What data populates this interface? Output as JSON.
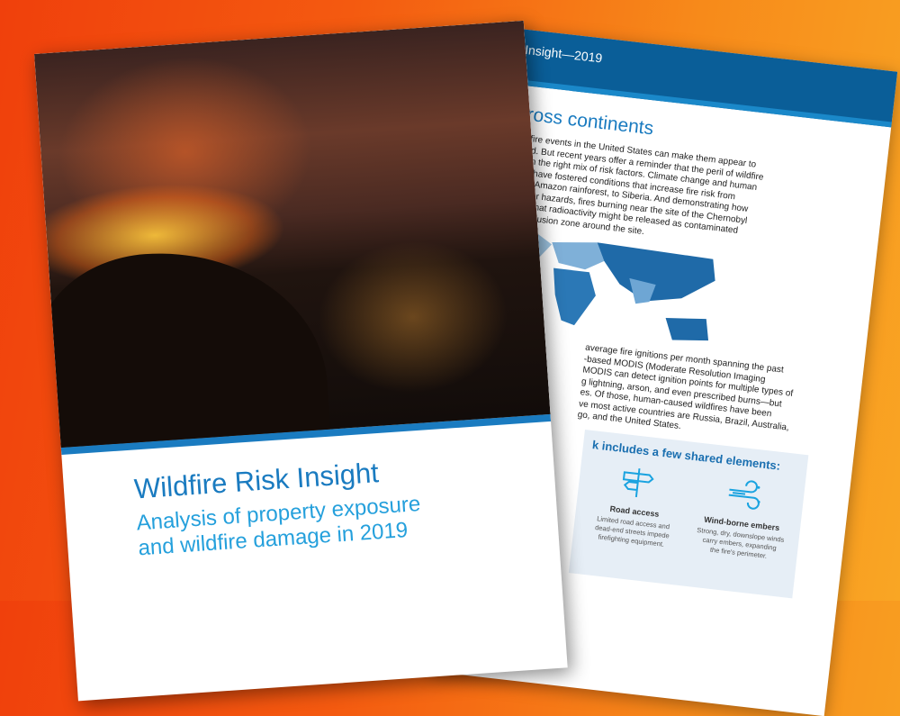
{
  "front_page": {
    "title": "Wildfire Risk Insight",
    "subtitle_line1": "Analysis of property exposure",
    "subtitle_line2": "and wildfire damage in 2019"
  },
  "back_page": {
    "header": "Insight—2019",
    "heading": "cross continents",
    "paragraph1": [
      "wildfire events in the United States can make them appear to",
      "azard. But recent years offer a reminder that the peril of wildfire",
      "n with the right mix of risk factors. Climate change and human",
      "ands have fostered conditions that increase fire risk from",
      "to the Amazon rainforest, to Siberia. And demonstrating how",
      "th other hazards, fires burning near the site of the Chernobyl",
      "cerns that radioactivity might be released as contaminated",
      "the exclusion zone around the site."
    ],
    "paragraph2": [
      "average fire ignitions per month spanning the past",
      "-based MODIS (Moderate Resolution Imaging",
      "MODIS can detect ignition points for multiple types of",
      "g lightning, arson, and even prescribed burns—but",
      "es. Of those, human-caused wildfires have been",
      "ve most active countries are Russia, Brazil, Australia,",
      "go, and the United States."
    ],
    "box_title": "k includes a few shared elements:",
    "features": [
      {
        "icon": "signpost-icon",
        "name": "Road access",
        "desc": [
          "Limited road access and",
          "dead-end streets impede",
          "firefighting equipment."
        ]
      },
      {
        "icon": "wind-icon",
        "name": "Wind-borne embers",
        "desc": [
          "Strong, dry, downslope winds",
          "carry embers, expanding",
          "the fire's perimeter."
        ]
      }
    ]
  },
  "colors": {
    "brand_blue": "#0a5e98",
    "accent_blue": "#1a7bc0",
    "light_blue": "#25a0dc",
    "background": "#f45a10"
  }
}
